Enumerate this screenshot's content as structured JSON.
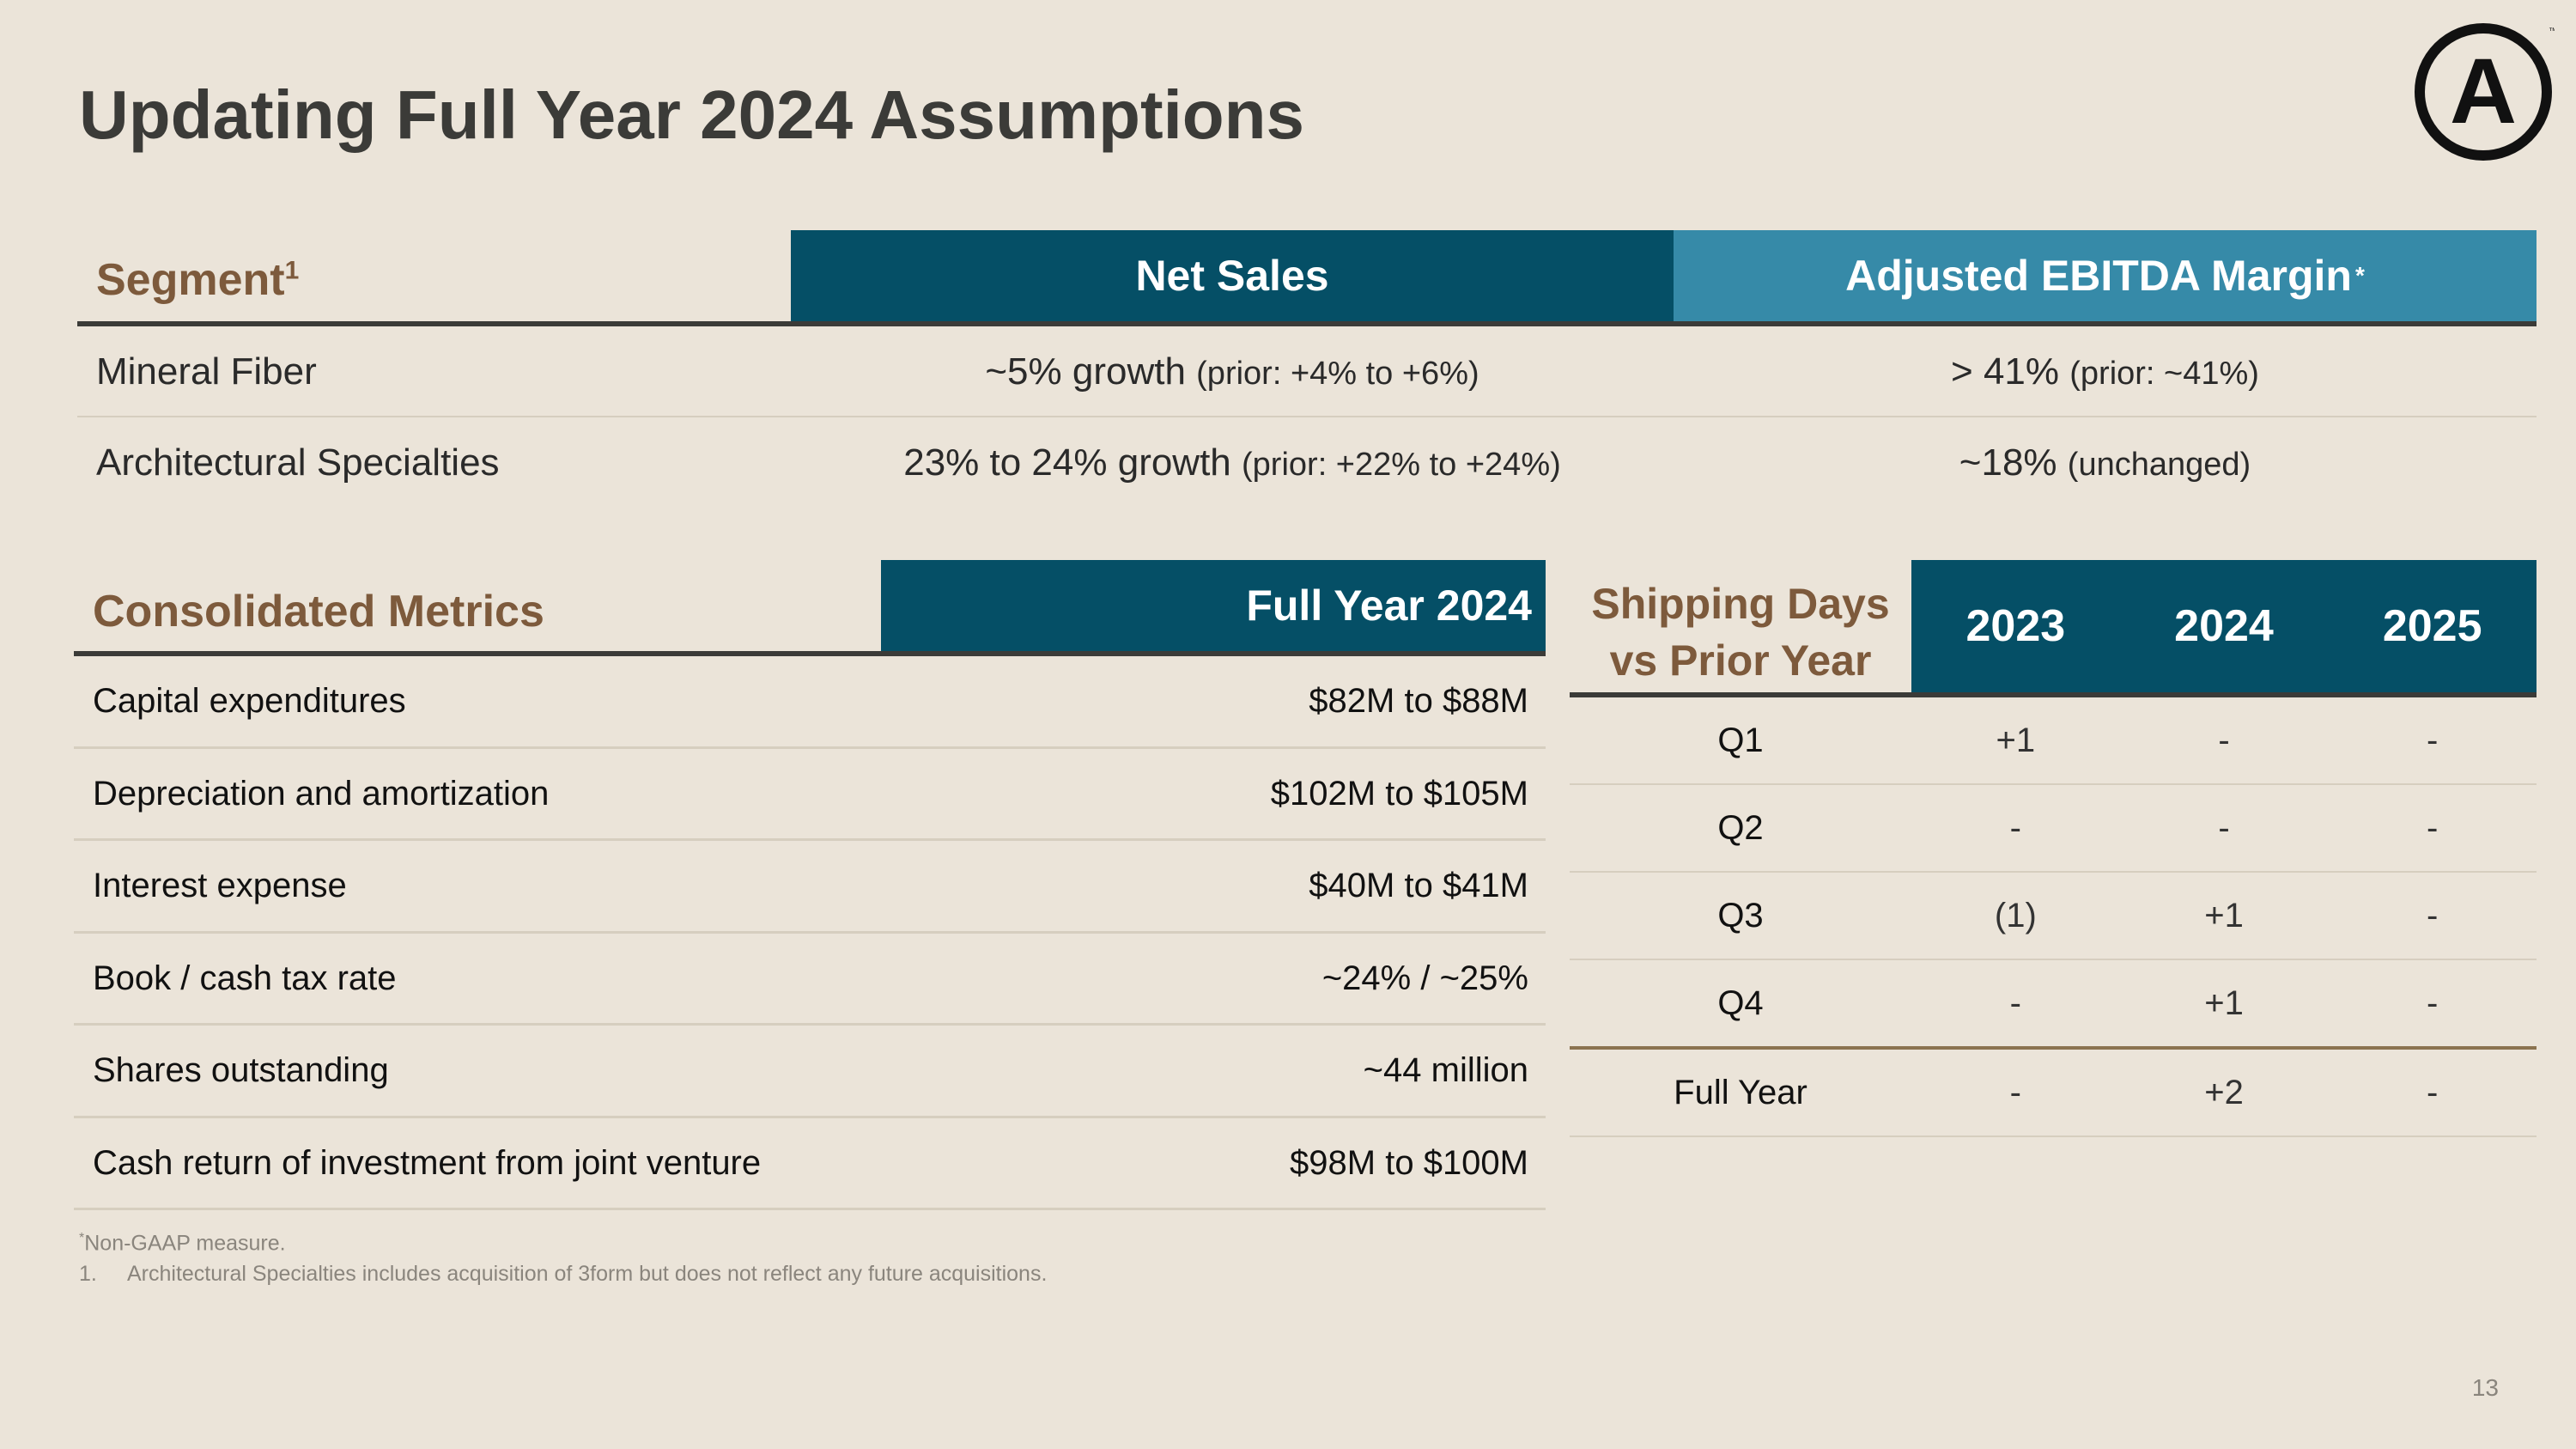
{
  "title": "Updating Full Year 2024 Assumptions",
  "logo": {
    "icon": "circle-a-logo",
    "letter": "A",
    "mark": "™"
  },
  "segment_table": {
    "label": "Segment",
    "label_sup": "1",
    "net_sales_header": "Net Sales",
    "ebitda_header": "Adjusted EBITDA Margin",
    "ebitda_sup": "*",
    "rows": [
      {
        "name": "Mineral Fiber",
        "net_sales": "~5% growth",
        "net_sales_prior": "(prior: +4% to +6%)",
        "ebitda": "> 41%",
        "ebitda_prior": "(prior: ~41%)"
      },
      {
        "name": "Architectural Specialties",
        "net_sales": "23% to 24% growth",
        "net_sales_prior": "(prior: +22% to +24%)",
        "ebitda": "~18%",
        "ebitda_prior": "(unchanged)"
      }
    ]
  },
  "consolidated": {
    "label": "Consolidated Metrics",
    "fy_header": "Full Year 2024",
    "rows": [
      {
        "metric": "Capital expenditures",
        "value": "$82M to $88M"
      },
      {
        "metric": "Depreciation and amortization",
        "value": "$102M to $105M"
      },
      {
        "metric": "Interest expense",
        "value": "$40M to $41M"
      },
      {
        "metric": "Book / cash tax rate",
        "value": "~24% / ~25%"
      },
      {
        "metric": "Shares outstanding",
        "value": "~44 million"
      },
      {
        "metric": "Cash return of investment from joint venture",
        "value": "$98M to $100M"
      }
    ]
  },
  "shipping": {
    "label_line1": "Shipping Days",
    "label_line2": "vs Prior Year",
    "years": [
      "2023",
      "2024",
      "2025"
    ],
    "rows": [
      {
        "period": "Q1",
        "values": [
          "+1",
          "-",
          "-"
        ]
      },
      {
        "period": "Q2",
        "values": [
          "-",
          "-",
          "-"
        ]
      },
      {
        "period": "Q3",
        "values": [
          "(1)",
          "+1",
          "-"
        ]
      },
      {
        "period": "Q4",
        "values": [
          "-",
          "+1",
          "-"
        ]
      },
      {
        "period": "Full Year",
        "values": [
          "-",
          "+2",
          "-"
        ]
      }
    ]
  },
  "notes": {
    "note1_sup": "*",
    "note1": "Non-GAAP measure.",
    "note2_num": "1.",
    "note2": "Architectural Specialties includes acquisition of 3form but does not reflect any future acquisitions."
  },
  "page_number": "13"
}
